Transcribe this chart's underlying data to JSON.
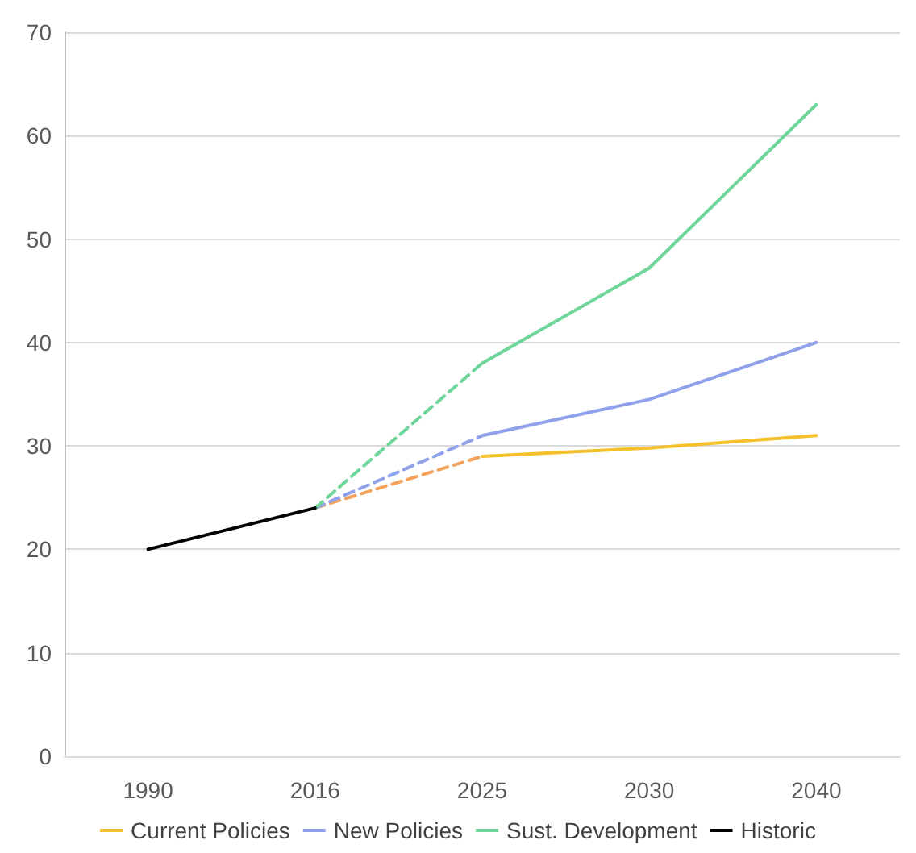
{
  "chart_data": {
    "type": "line",
    "categories": [
      "1990",
      "2016",
      "2025",
      "2030",
      "2040"
    ],
    "series": [
      {
        "name": "Current Policies",
        "color": "#f5c02c",
        "values": [
          null,
          null,
          29,
          29.8,
          31
        ],
        "line_style": "solid"
      },
      {
        "name": "New Policies",
        "color": "#8fa1ea",
        "values": [
          null,
          null,
          31,
          34.5,
          40
        ],
        "line_style": "solid"
      },
      {
        "name": "Sust. Development",
        "color": "#6fd69b",
        "values": [
          null,
          null,
          38,
          47.2,
          63
        ],
        "line_style": "solid"
      },
      {
        "name": "Historic",
        "color": "#000000",
        "values": [
          20,
          24,
          null,
          null,
          null
        ],
        "line_style": "solid"
      },
      {
        "color": "#f4a35c",
        "values": [
          null,
          24,
          29,
          null,
          null
        ],
        "line_style": "dashed"
      },
      {
        "color": "#8fa1ea",
        "values": [
          null,
          24,
          31,
          null,
          null
        ],
        "line_style": "dashed"
      },
      {
        "color": "#6fd69b",
        "values": [
          null,
          24,
          38,
          null,
          null
        ],
        "line_style": "dashed"
      }
    ],
    "ylim": [
      0,
      70
    ],
    "yticks": [
      0,
      10,
      20,
      30,
      40,
      50,
      60,
      70
    ],
    "grid": "y",
    "legend": "bottom",
    "marker": "none"
  }
}
